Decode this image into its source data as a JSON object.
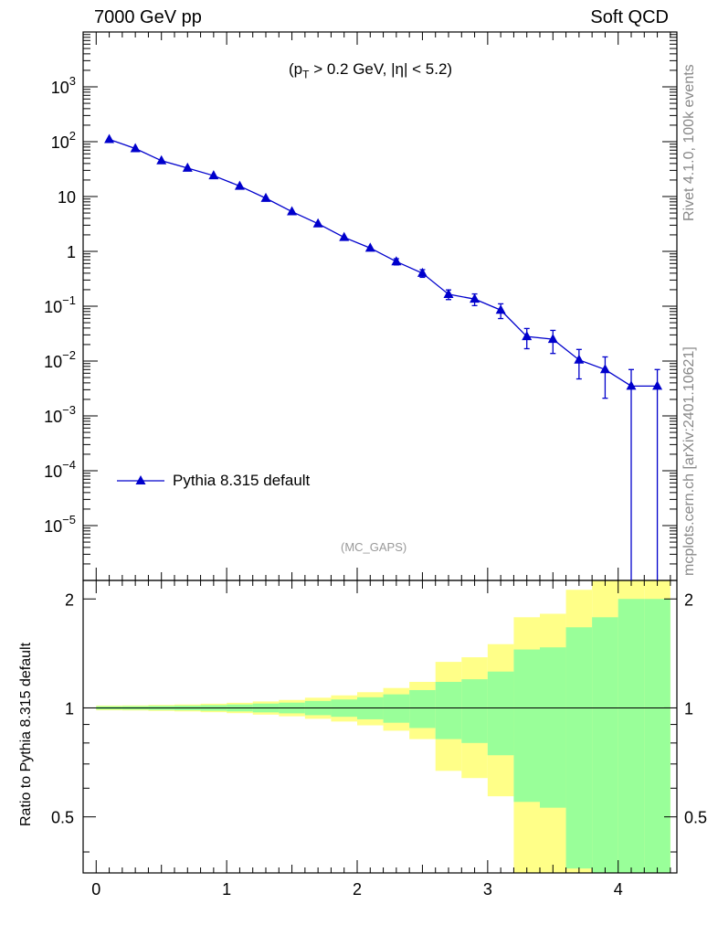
{
  "chart_data": {
    "type": "line",
    "title_left": "7000 GeV pp",
    "title_right": "Soft QCD",
    "cut_label": "(p_T > 0.2 GeV, |η| < 5.2)",
    "cut_parts": {
      "p": "(p",
      "sub": "T",
      "rest": " > 0.2 GeV, |η| < 5.2)"
    },
    "analysis_tag": "(MC_GAPS)",
    "side_label_top": "Rivet 4.1.0,  100k events",
    "side_label_bottom": "mcplots.cern.ch [arXiv:2401.10621]",
    "ratio_ylabel": "Ratio to Pythia 8.315 default",
    "xlim": [
      -0.1,
      4.45
    ],
    "ylim_log": [
      1e-06,
      10000.0
    ],
    "ratio_ylim": [
      0.35,
      2.25
    ],
    "x_ticks": [
      "0",
      "1",
      "2",
      "3",
      "4"
    ],
    "y_ticks": [
      "10^-5",
      "10^-4",
      "10^-3",
      "10^-2",
      "10^-1",
      "1",
      "10",
      "10^2",
      "10^3"
    ],
    "ratio_ticks": [
      "0.5",
      "1",
      "2"
    ],
    "series": [
      {
        "name": "Pythia 8.315 default",
        "color": "#0000cc",
        "marker": "triangle",
        "x": [
          0.1,
          0.3,
          0.5,
          0.7,
          0.9,
          1.1,
          1.3,
          1.5,
          1.7,
          1.9,
          2.1,
          2.3,
          2.5,
          2.7,
          2.9,
          3.1,
          3.3,
          3.5,
          3.7,
          3.9,
          4.1,
          4.3
        ],
        "y": [
          110,
          75,
          45,
          33,
          24,
          15.5,
          9.3,
          5.3,
          3.2,
          1.8,
          1.15,
          0.65,
          0.4,
          0.165,
          0.135,
          0.085,
          0.028,
          0.025,
          0.0105,
          0.007,
          0.0035,
          0.0035
        ],
        "yerr_rel": [
          0.01,
          0.012,
          0.015,
          0.018,
          0.022,
          0.028,
          0.035,
          0.045,
          0.06,
          0.08,
          0.1,
          0.13,
          0.16,
          0.2,
          0.24,
          0.3,
          0.4,
          0.45,
          0.55,
          0.7,
          1.0,
          1.0
        ]
      }
    ],
    "ratio_band_inner": {
      "bin_edges": [
        0.0,
        0.2,
        0.4,
        0.6,
        0.8,
        1.0,
        1.2,
        1.4,
        1.6,
        1.8,
        2.0,
        2.2,
        2.4,
        2.6,
        2.8,
        3.0,
        3.2,
        3.4,
        3.6,
        3.8,
        4.0,
        4.2,
        4.4
      ],
      "up": [
        1.01,
        1.011,
        1.013,
        1.015,
        1.018,
        1.022,
        1.028,
        1.034,
        1.045,
        1.055,
        1.07,
        1.09,
        1.12,
        1.18,
        1.2,
        1.26,
        1.45,
        1.47,
        1.67,
        1.78,
        2.0,
        2.0
      ],
      "down": [
        0.99,
        0.989,
        0.987,
        0.985,
        0.982,
        0.978,
        0.972,
        0.966,
        0.955,
        0.945,
        0.93,
        0.91,
        0.88,
        0.82,
        0.8,
        0.74,
        0.55,
        0.53,
        0.36,
        0.35,
        0.35,
        0.35
      ],
      "color": "#99ff99"
    },
    "ratio_band_outer": {
      "up": [
        1.015,
        1.016,
        1.019,
        1.022,
        1.027,
        1.033,
        1.042,
        1.052,
        1.067,
        1.083,
        1.105,
        1.135,
        1.18,
        1.34,
        1.38,
        1.5,
        1.78,
        1.82,
        2.12,
        2.3,
        2.3,
        2.3
      ],
      "down": [
        0.985,
        0.984,
        0.981,
        0.978,
        0.973,
        0.967,
        0.958,
        0.948,
        0.933,
        0.917,
        0.895,
        0.865,
        0.82,
        0.67,
        0.64,
        0.57,
        0.35,
        0.35,
        0.35,
        0.35,
        0.35,
        0.35
      ],
      "color": "#ffff88"
    }
  }
}
